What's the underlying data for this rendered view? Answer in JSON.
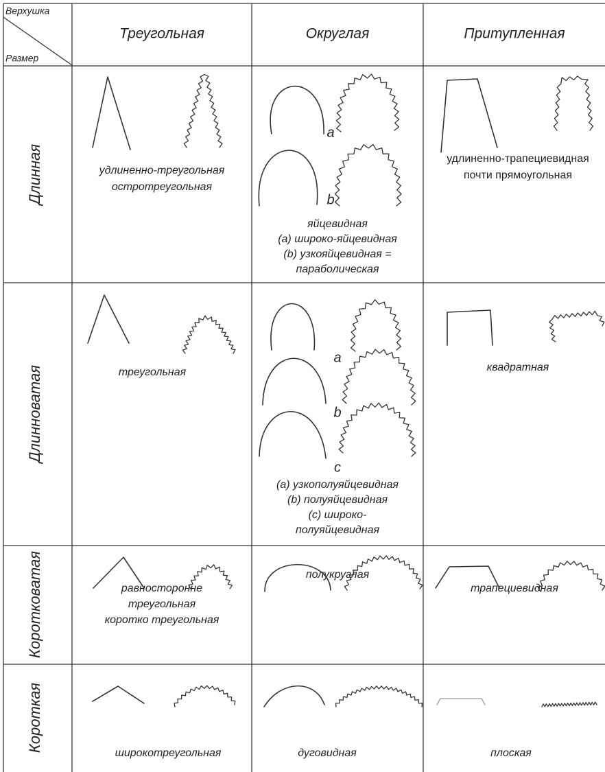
{
  "header": {
    "corner_top": "Верхушка",
    "corner_bottom": "Размер",
    "columns": [
      "Треугольная",
      "Округлая",
      "Притупленная"
    ]
  },
  "rows": [
    {
      "label": "Длинная",
      "cells": [
        {
          "captions": [
            "удлиненно-треугольная",
            "остротреугольная"
          ]
        },
        {
          "marks": [
            "a",
            "b"
          ],
          "captions": [
            "яйцевидная",
            "(a) широко-яйцевидная",
            "(b) узкояйцевидная =",
            "параболическая"
          ]
        },
        {
          "captions": [
            "удлиненно-трапециевидная",
            "почти прямоугольная"
          ]
        }
      ]
    },
    {
      "label": "Длинноватая",
      "cells": [
        {
          "captions": [
            "треугольная"
          ]
        },
        {
          "marks": [
            "a",
            "b",
            "c"
          ],
          "captions": [
            "(a) узкополуяйцевидная",
            "(b) полуяйцевидная",
            "(c) широко-",
            "полуяйцевидная"
          ]
        },
        {
          "captions": [
            "квадратная"
          ]
        }
      ]
    },
    {
      "label": "Коротковатая",
      "cells": [
        {
          "captions": [
            "равносторонне",
            "треугольная",
            "коротко треугольная"
          ]
        },
        {
          "captions": [
            "полукруглая"
          ]
        },
        {
          "captions": [
            "трапециевидная"
          ]
        }
      ]
    },
    {
      "label": "Короткая",
      "cells": [
        {
          "captions": [
            "широкотреугольная"
          ]
        },
        {
          "captions": [
            "дуговидная"
          ]
        },
        {
          "captions": [
            "плоская"
          ]
        }
      ]
    }
  ]
}
